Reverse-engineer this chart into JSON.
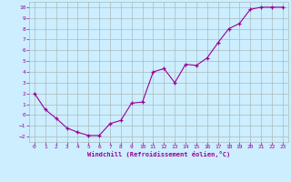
{
  "x": [
    0,
    1,
    2,
    3,
    4,
    5,
    6,
    7,
    8,
    9,
    10,
    11,
    12,
    13,
    14,
    15,
    16,
    17,
    18,
    19,
    20,
    21,
    22,
    23
  ],
  "y": [
    2.0,
    0.5,
    -0.3,
    -1.2,
    -1.6,
    -1.9,
    -1.9,
    -0.8,
    -0.5,
    1.1,
    1.2,
    4.0,
    4.3,
    3.0,
    4.7,
    4.6,
    5.3,
    6.7,
    8.0,
    8.5,
    9.8,
    10.0,
    10.0,
    10.0
  ],
  "xlim": [
    -0.5,
    23.5
  ],
  "ylim": [
    -2.5,
    10.5
  ],
  "yticks": [
    -2,
    -1,
    0,
    1,
    2,
    3,
    4,
    5,
    6,
    7,
    8,
    9,
    10
  ],
  "xticks": [
    0,
    1,
    2,
    3,
    4,
    5,
    6,
    7,
    8,
    9,
    10,
    11,
    12,
    13,
    14,
    15,
    16,
    17,
    18,
    19,
    20,
    21,
    22,
    23
  ],
  "xlabel": "Windchill (Refroidissement éolien,°C)",
  "line_color": "#990099",
  "marker": "+",
  "bg_color": "#cceeff",
  "grid_color": "#aabbbb",
  "tick_color": "#990099",
  "label_color": "#990099"
}
